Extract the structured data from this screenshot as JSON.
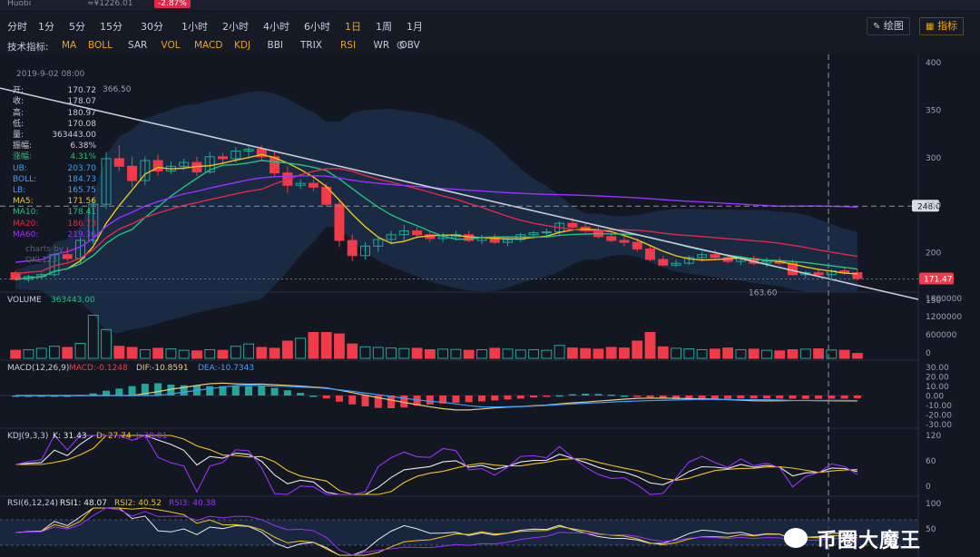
{
  "topbar": {
    "exchange": "Huobi",
    "price": "≈¥1226.01",
    "change": "-2.87%"
  },
  "timeframes": [
    "分时",
    "1分",
    "5分",
    "15分",
    "30分",
    "1小时",
    "2小时",
    "4小时",
    "6小时",
    "1日",
    "1周",
    "1月"
  ],
  "active_timeframe": "1日",
  "tools": {
    "draw_label": "绘图",
    "indicator_label": "指标"
  },
  "indicators": {
    "label": "技术指标:",
    "items": [
      "MA",
      "BOLL",
      "SAR",
      "VOL",
      "MACD",
      "KDJ",
      "BBI",
      "TRIX",
      "RSI",
      "WR",
      "OBV"
    ],
    "active": [
      "MA",
      "BOLL",
      "VOL",
      "MACD",
      "KDJ",
      "RSI"
    ]
  },
  "info": {
    "date": "2019-9-02 08:00",
    "rows": [
      {
        "k": "开:",
        "v": "170.72"
      },
      {
        "k": "收:",
        "v": "178.07"
      },
      {
        "k": "高:",
        "v": "180.97"
      },
      {
        "k": "低:",
        "v": "170.08"
      },
      {
        "k": "量:",
        "v": "363443.00"
      },
      {
        "k": "振幅:",
        "v": "6.38%"
      },
      {
        "k": "涨幅:",
        "v": "4.31%"
      },
      {
        "k": "UB:",
        "v": "203.70"
      },
      {
        "k": "BOLL:",
        "v": "184.73"
      },
      {
        "k": "LB:",
        "v": "165.75"
      },
      {
        "k": "MA5:",
        "v": "171.56"
      },
      {
        "k": "MA10:",
        "v": "178.41"
      },
      {
        "k": "MA20:",
        "v": "186.73"
      },
      {
        "k": "MA60:",
        "v": "219.36"
      }
    ],
    "watermark": "charts by QKL123"
  },
  "price_axis": {
    "ticks": [
      "400",
      "350",
      "300",
      "250",
      "200",
      "150"
    ],
    "max_label": "366.50",
    "min_label": "163.60",
    "crosshair_label": "248.0",
    "last_price_label": "171.47"
  },
  "volume": {
    "label": "VOLUME",
    "value": "363443.00",
    "ticks": [
      "1800000",
      "1200000",
      "600000",
      "0"
    ]
  },
  "macd": {
    "label": "MACD(12,26,9)",
    "macd": "MACD:-0.1248",
    "dif": "DIF:-10.8591",
    "dea": "DEA:-10.7343",
    "ticks": [
      "30.00",
      "20.00",
      "10.00",
      "0.00",
      "-10.00",
      "-20.00",
      "-30.00"
    ]
  },
  "kdj": {
    "label": "KDJ(9,3,3)",
    "k": "K: 31.43",
    "d": "D: 27.74",
    "j": "J: 38.81",
    "ticks": [
      "120",
      "60",
      "0"
    ]
  },
  "rsi": {
    "label": "RSI(6,12,24)",
    "rsi1": "RSI1: 48.07",
    "rsi2": "RSI2: 40.52",
    "rsi3": "RSI3: 40.38",
    "ticks": [
      "100",
      "50"
    ]
  },
  "brand": {
    "text": "币圈大魔王"
  },
  "colors": {
    "up": "#26a69a",
    "down": "#ef3b4a",
    "ma5": "#f0c419",
    "ma10": "#1fc47d",
    "ma20": "#e0294a",
    "ma60": "#9b30ff",
    "accent": "#f0a30a"
  },
  "chart_data": {
    "type": "candlestick",
    "title": "",
    "ylim": [
      150,
      400
    ],
    "candles": [
      [
        178,
        180,
        170,
        171
      ],
      [
        171,
        176,
        168,
        174
      ],
      [
        174,
        178,
        172,
        176
      ],
      [
        176,
        199,
        174,
        197
      ],
      [
        197,
        205,
        190,
        193
      ],
      [
        193,
        215,
        188,
        212
      ],
      [
        212,
        256,
        208,
        250
      ],
      [
        250,
        305,
        245,
        298
      ],
      [
        298,
        312,
        285,
        290
      ],
      [
        290,
        300,
        268,
        275
      ],
      [
        275,
        300,
        270,
        296
      ],
      [
        296,
        302,
        280,
        285
      ],
      [
        285,
        295,
        282,
        290
      ],
      [
        290,
        298,
        286,
        294
      ],
      [
        294,
        300,
        280,
        284
      ],
      [
        284,
        305,
        282,
        300
      ],
      [
        300,
        304,
        292,
        298
      ],
      [
        298,
        310,
        294,
        306
      ],
      [
        306,
        312,
        300,
        308
      ],
      [
        308,
        312,
        295,
        300
      ],
      [
        300,
        305,
        280,
        283
      ],
      [
        283,
        290,
        262,
        270
      ],
      [
        270,
        276,
        266,
        272
      ],
      [
        272,
        276,
        264,
        268
      ],
      [
        268,
        272,
        248,
        250
      ],
      [
        250,
        255,
        205,
        212
      ],
      [
        212,
        218,
        190,
        196
      ],
      [
        196,
        210,
        192,
        206
      ],
      [
        206,
        216,
        200,
        213
      ],
      [
        213,
        222,
        208,
        218
      ],
      [
        218,
        228,
        212,
        222
      ],
      [
        222,
        226,
        214,
        218
      ],
      [
        218,
        222,
        210,
        214
      ],
      [
        214,
        220,
        210,
        216
      ],
      [
        216,
        222,
        212,
        218
      ],
      [
        218,
        222,
        210,
        212
      ],
      [
        212,
        218,
        208,
        215
      ],
      [
        215,
        219,
        208,
        210
      ],
      [
        210,
        216,
        206,
        213
      ],
      [
        213,
        220,
        210,
        218
      ],
      [
        218,
        222,
        214,
        220
      ],
      [
        220,
        224,
        215,
        221
      ],
      [
        221,
        232,
        218,
        230
      ],
      [
        230,
        236,
        222,
        226
      ],
      [
        226,
        230,
        220,
        222
      ],
      [
        222,
        226,
        214,
        216
      ],
      [
        216,
        220,
        210,
        212
      ],
      [
        212,
        218,
        206,
        210
      ],
      [
        210,
        214,
        200,
        203
      ],
      [
        203,
        206,
        190,
        192
      ],
      [
        192,
        196,
        185,
        186
      ],
      [
        186,
        192,
        184,
        188
      ],
      [
        188,
        196,
        186,
        194
      ],
      [
        194,
        200,
        190,
        197
      ],
      [
        197,
        202,
        192,
        194
      ],
      [
        194,
        198,
        188,
        190
      ],
      [
        190,
        196,
        186,
        193
      ],
      [
        193,
        196,
        186,
        188
      ],
      [
        188,
        194,
        184,
        190
      ],
      [
        190,
        194,
        186,
        188
      ],
      [
        188,
        192,
        175,
        176
      ],
      [
        176,
        180,
        172,
        178
      ],
      [
        178,
        182,
        174,
        176
      ],
      [
        176,
        182,
        172,
        180
      ],
      [
        180,
        184,
        176,
        178
      ],
      [
        178,
        182,
        170,
        172
      ]
    ],
    "volume": [
      280000,
      300000,
      350000,
      420000,
      380000,
      520000,
      1500000,
      1000000,
      420000,
      380000,
      300000,
      350000,
      330000,
      280000,
      260000,
      300000,
      280000,
      420000,
      500000,
      380000,
      350000,
      600000,
      700000,
      900000,
      900000,
      850000,
      500000,
      400000,
      380000,
      360000,
      340000,
      350000,
      300000,
      320000,
      310000,
      280000,
      300000,
      350000,
      320000,
      290000,
      300000,
      280000,
      450000,
      360000,
      340000,
      320000,
      380000,
      360000,
      600000,
      900000,
      400000,
      350000,
      330000,
      300000,
      320000,
      360000,
      300000,
      320000,
      280000,
      260000,
      300000,
      320000,
      330000,
      290000,
      280000,
      170000
    ],
    "price_ticks": [
      400,
      350,
      300,
      250,
      200,
      150
    ]
  }
}
